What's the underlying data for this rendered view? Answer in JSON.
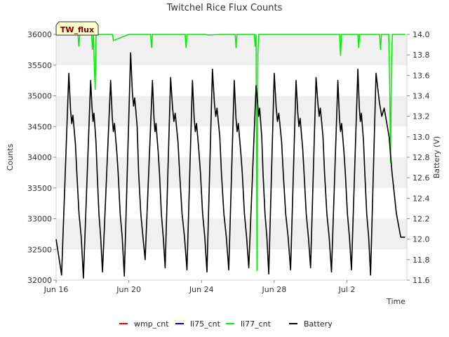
{
  "chart_data": {
    "type": "line",
    "title": "Twitchel Rice Flux Counts",
    "badge": "TW_flux",
    "xlabel": "Time",
    "ylabel": "Counts",
    "y2label": "Battery (V)",
    "xlim": [
      0,
      19.3
    ],
    "ylim": [
      32000,
      36000
    ],
    "y2lim": [
      11.6,
      14.0
    ],
    "x_ticks": [
      {
        "value": 0,
        "label": "Jun 16"
      },
      {
        "value": 4,
        "label": "Jun 20"
      },
      {
        "value": 8,
        "label": "Jun 24"
      },
      {
        "value": 12,
        "label": "Jun 28"
      },
      {
        "value": 16,
        "label": "Jul 2"
      }
    ],
    "y_ticks": [
      32000,
      32500,
      33000,
      33500,
      34000,
      34500,
      35000,
      35500,
      36000
    ],
    "y2_ticks": [
      11.6,
      11.8,
      12.0,
      12.2,
      12.4,
      12.6,
      12.8,
      13.0,
      13.2,
      13.4,
      13.6,
      13.8,
      14.0
    ],
    "y2_tick_labels": [
      "11.6",
      "11.8",
      "12.0",
      "12.2",
      "12.4",
      "12.6",
      "12.8",
      "13.0",
      "13.2",
      "13.4",
      "13.6",
      "13.8",
      "14.0"
    ],
    "series": [
      {
        "name": "wmp_cnt",
        "color": "#dd0000",
        "axis": "left",
        "x": [],
        "y": []
      },
      {
        "name": "li75_cnt",
        "color": "#0000bb",
        "axis": "left",
        "x": [],
        "y": []
      },
      {
        "name": "li77_cnt",
        "color": "#00ee00",
        "axis": "left",
        "x": [
          0.3,
          1.2,
          1.25,
          1.3,
          1.95,
          2.0,
          2.05,
          2.1,
          2.15,
          2.2,
          2.25,
          3.1,
          3.15,
          4.0,
          5.2,
          5.25,
          5.3,
          6.2,
          7.1,
          7.15,
          7.2,
          8.2,
          8.35,
          9.1,
          9.85,
          9.9,
          9.95,
          10.9,
          10.95,
          11.0,
          11.05,
          11.1,
          11.15,
          11.2,
          11.25,
          12.2,
          13.2,
          15.6,
          15.65,
          15.7,
          16.6,
          16.65,
          16.7,
          17.8,
          17.85,
          17.9,
          18.3,
          18.35,
          18.4,
          18.45,
          18.5,
          19.2
        ],
        "y": [
          36000,
          36000,
          35800,
          36000,
          36000,
          35750,
          36000,
          35500,
          35100,
          36000,
          36000,
          36000,
          35900,
          36000,
          36000,
          35780,
          36000,
          36000,
          36000,
          35780,
          36000,
          36000,
          35990,
          36000,
          36000,
          35780,
          36000,
          36000,
          35800,
          36000,
          32150,
          35700,
          36000,
          36000,
          36000,
          36000,
          36000,
          36000,
          35650,
          36000,
          36000,
          35780,
          36000,
          36000,
          35750,
          36000,
          36000,
          35200,
          33900,
          35500,
          36000,
          36000
        ]
      },
      {
        "name": "Battery",
        "color": "#000000",
        "axis": "right",
        "cycles": [
          {
            "start": 0.3,
            "peak": 0.7,
            "low": 11.65,
            "peak_v": 13.62,
            "plateau": 13.18
          },
          {
            "start": 1.5,
            "peak": 1.9,
            "low": 11.62,
            "peak_v": 13.55,
            "plateau": 13.2
          },
          {
            "start": 2.55,
            "peak": 3.0,
            "low": 11.68,
            "peak_v": 13.55,
            "plateau": 13.1
          },
          {
            "start": 3.75,
            "peak": 4.1,
            "low": 11.64,
            "peak_v": 13.82,
            "plateau": 13.35
          },
          {
            "start": 4.9,
            "peak": 5.3,
            "low": 11.8,
            "peak_v": 13.55,
            "plateau": 13.1
          },
          {
            "start": 6.0,
            "peak": 6.3,
            "low": 11.72,
            "peak_v": 13.58,
            "plateau": 13.2
          },
          {
            "start": 7.2,
            "peak": 7.5,
            "low": 11.7,
            "peak_v": 13.55,
            "plateau": 13.1
          },
          {
            "start": 8.3,
            "peak": 8.6,
            "low": 11.68,
            "peak_v": 13.66,
            "plateau": 13.25
          },
          {
            "start": 9.5,
            "peak": 9.8,
            "low": 11.7,
            "peak_v": 13.55,
            "plateau": 13.1
          },
          {
            "start": 10.6,
            "peak": 11.0,
            "low": 11.72,
            "peak_v": 13.5,
            "plateau": 13.25
          },
          {
            "start": 11.7,
            "peak": 12.0,
            "low": 11.66,
            "peak_v": 13.62,
            "plateau": 13.2
          },
          {
            "start": 12.9,
            "peak": 13.2,
            "low": 11.7,
            "peak_v": 13.55,
            "plateau": 13.15
          },
          {
            "start": 14.0,
            "peak": 14.3,
            "low": 11.72,
            "peak_v": 13.58,
            "plateau": 13.25
          },
          {
            "start": 15.15,
            "peak": 15.5,
            "low": 11.68,
            "peak_v": 13.55,
            "plateau": 13.1
          },
          {
            "start": 16.25,
            "peak": 16.6,
            "low": 11.7,
            "peak_v": 13.66,
            "plateau": 13.2
          },
          {
            "start": 17.3,
            "peak": 17.6,
            "low": 11.65,
            "peak_v": 13.62,
            "plateau": 13.25
          }
        ],
        "end": {
          "x": 19.2,
          "v": 12.02
        },
        "begin": {
          "x": 0.0,
          "v": 12.0
        }
      }
    ],
    "legend": [
      {
        "name": "wmp_cnt",
        "color": "#dd0000"
      },
      {
        "name": "li75_cnt",
        "color": "#0000bb"
      },
      {
        "name": "li77_cnt",
        "color": "#00ee00"
      },
      {
        "name": "Battery",
        "color": "#000000"
      }
    ],
    "grid": "horizontal bands",
    "legend_position": "bottom-center"
  }
}
